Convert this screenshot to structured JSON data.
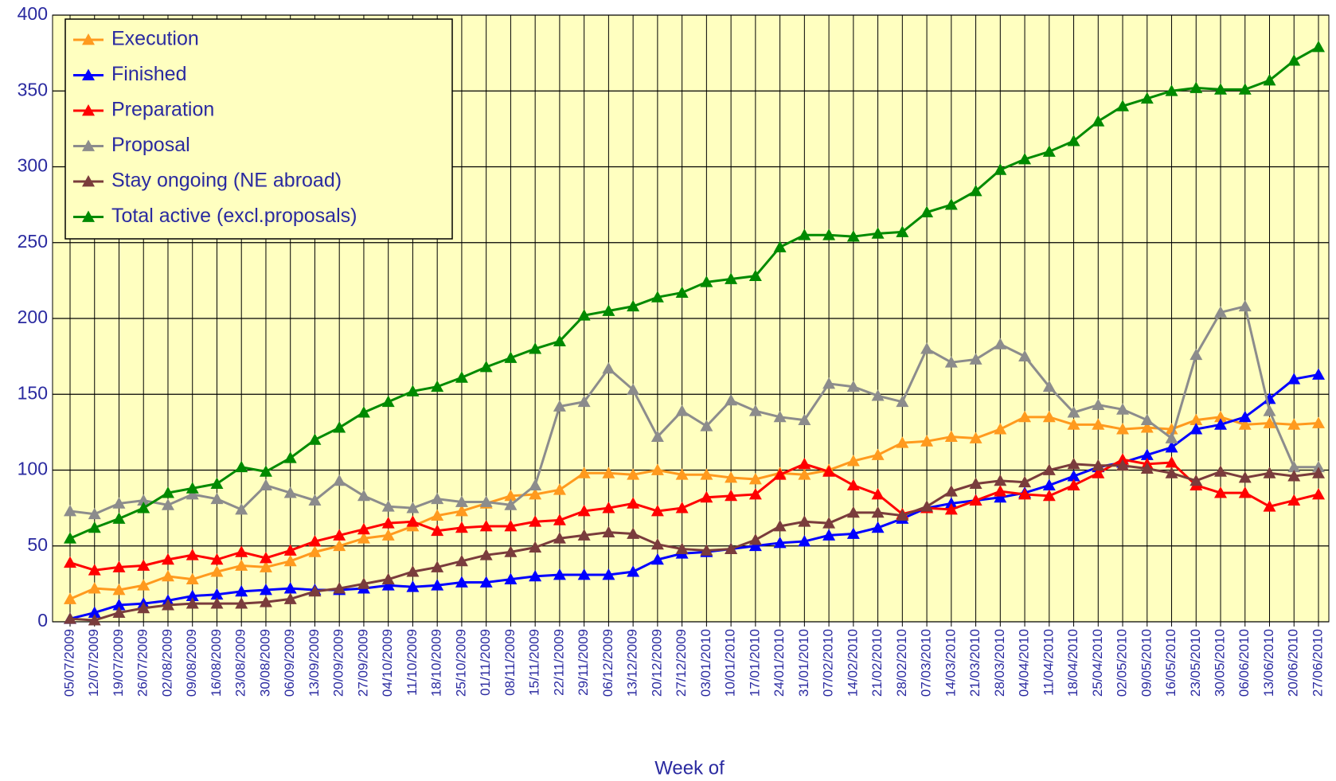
{
  "chart_data": {
    "type": "line",
    "x_label": "Week of",
    "categories": [
      "05/07/2009",
      "12/07/2009",
      "19/07/2009",
      "26/07/2009",
      "02/08/2009",
      "09/08/2009",
      "16/08/2009",
      "23/08/2009",
      "30/08/2009",
      "06/09/2009",
      "13/09/2009",
      "20/09/2009",
      "27/09/2009",
      "04/10/2009",
      "11/10/2009",
      "18/10/2009",
      "25/10/2009",
      "01/11/2009",
      "08/11/2009",
      "15/11/2009",
      "22/11/2009",
      "29/11/2009",
      "06/12/2009",
      "13/12/2009",
      "20/12/2009",
      "27/12/2009",
      "03/01/2010",
      "10/01/2010",
      "17/01/2010",
      "24/01/2010",
      "31/01/2010",
      "07/02/2010",
      "14/02/2010",
      "21/02/2010",
      "28/02/2010",
      "07/03/2010",
      "14/03/2010",
      "21/03/2010",
      "28/03/2010",
      "04/04/2010",
      "11/04/2010",
      "18/04/2010",
      "25/04/2010",
      "02/05/2010",
      "09/05/2010",
      "16/05/2010",
      "23/05/2010",
      "30/05/2010",
      "06/06/2010",
      "13/06/2010",
      "20/06/2010",
      "27/06/2010"
    ],
    "series": [
      {
        "name": "Execution",
        "color": "#ff9a1e",
        "values": [
          15,
          22,
          21,
          24,
          30,
          28,
          33,
          37,
          36,
          40,
          46,
          50,
          55,
          57,
          63,
          70,
          73,
          78,
          83,
          84,
          87,
          98,
          98,
          97,
          100,
          97,
          97,
          95,
          94,
          98,
          97,
          100,
          106,
          110,
          118,
          119,
          122,
          121,
          127,
          135,
          135,
          130,
          130,
          127,
          128,
          127,
          133,
          135,
          130,
          131,
          130,
          131
        ]
      },
      {
        "name": "Finished",
        "color": "#0000ff",
        "values": [
          2,
          6,
          11,
          12,
          14,
          17,
          18,
          20,
          21,
          22,
          21,
          21,
          22,
          24,
          23,
          24,
          26,
          26,
          28,
          30,
          31,
          31,
          31,
          33,
          41,
          45,
          46,
          48,
          50,
          52,
          53,
          57,
          58,
          62,
          68,
          75,
          78,
          80,
          82,
          85,
          90,
          96,
          102,
          105,
          110,
          115,
          127,
          130,
          135,
          147,
          160,
          163
        ]
      },
      {
        "name": "Preparation",
        "color": "#ff0000",
        "values": [
          39,
          34,
          36,
          37,
          41,
          44,
          41,
          46,
          42,
          47,
          53,
          57,
          61,
          65,
          66,
          60,
          62,
          63,
          63,
          66,
          67,
          73,
          75,
          78,
          73,
          75,
          82,
          83,
          84,
          97,
          104,
          99,
          90,
          84,
          71,
          75,
          74,
          80,
          86,
          84,
          83,
          90,
          98,
          107,
          104,
          105,
          90,
          85,
          85,
          76,
          80,
          84
        ]
      },
      {
        "name": "Proposal",
        "color": "#8c8c8c",
        "values": [
          73,
          71,
          78,
          80,
          77,
          84,
          81,
          74,
          90,
          85,
          80,
          93,
          83,
          76,
          75,
          81,
          79,
          79,
          77,
          90,
          142,
          145,
          167,
          153,
          122,
          139,
          129,
          146,
          139,
          135,
          133,
          157,
          155,
          149,
          145,
          180,
          171,
          173,
          183,
          175,
          155,
          138,
          143,
          140,
          133,
          121,
          176,
          204,
          208,
          139,
          102,
          102
        ]
      },
      {
        "name": "Stay ongoing (NE abroad)",
        "color": "#7a3c3c",
        "values": [
          2,
          1,
          6,
          9,
          11,
          12,
          12,
          12,
          13,
          15,
          20,
          22,
          25,
          28,
          33,
          36,
          40,
          44,
          46,
          49,
          55,
          57,
          59,
          58,
          51,
          48,
          47,
          48,
          54,
          63,
          66,
          65,
          72,
          72,
          70,
          76,
          86,
          91,
          93,
          92,
          100,
          104,
          103,
          103,
          101,
          98,
          93,
          99,
          95,
          98,
          96,
          98
        ]
      },
      {
        "name": "Total active (excl.proposals)",
        "color": "#008a00",
        "values": [
          55,
          62,
          68,
          75,
          85,
          88,
          91,
          102,
          99,
          108,
          120,
          128,
          138,
          145,
          152,
          155,
          161,
          168,
          174,
          180,
          185,
          202,
          205,
          208,
          214,
          217,
          224,
          226,
          228,
          247,
          255,
          255,
          254,
          256,
          257,
          270,
          275,
          284,
          298,
          305,
          310,
          317,
          330,
          340,
          345,
          350,
          352,
          351,
          351,
          357,
          370,
          379
        ]
      }
    ],
    "ylim": [
      0,
      400
    ],
    "yticks": [
      0,
      50,
      100,
      150,
      200,
      250,
      300,
      350,
      400
    ],
    "grid": true,
    "legend": "top-left",
    "background": "#ffffc0"
  }
}
